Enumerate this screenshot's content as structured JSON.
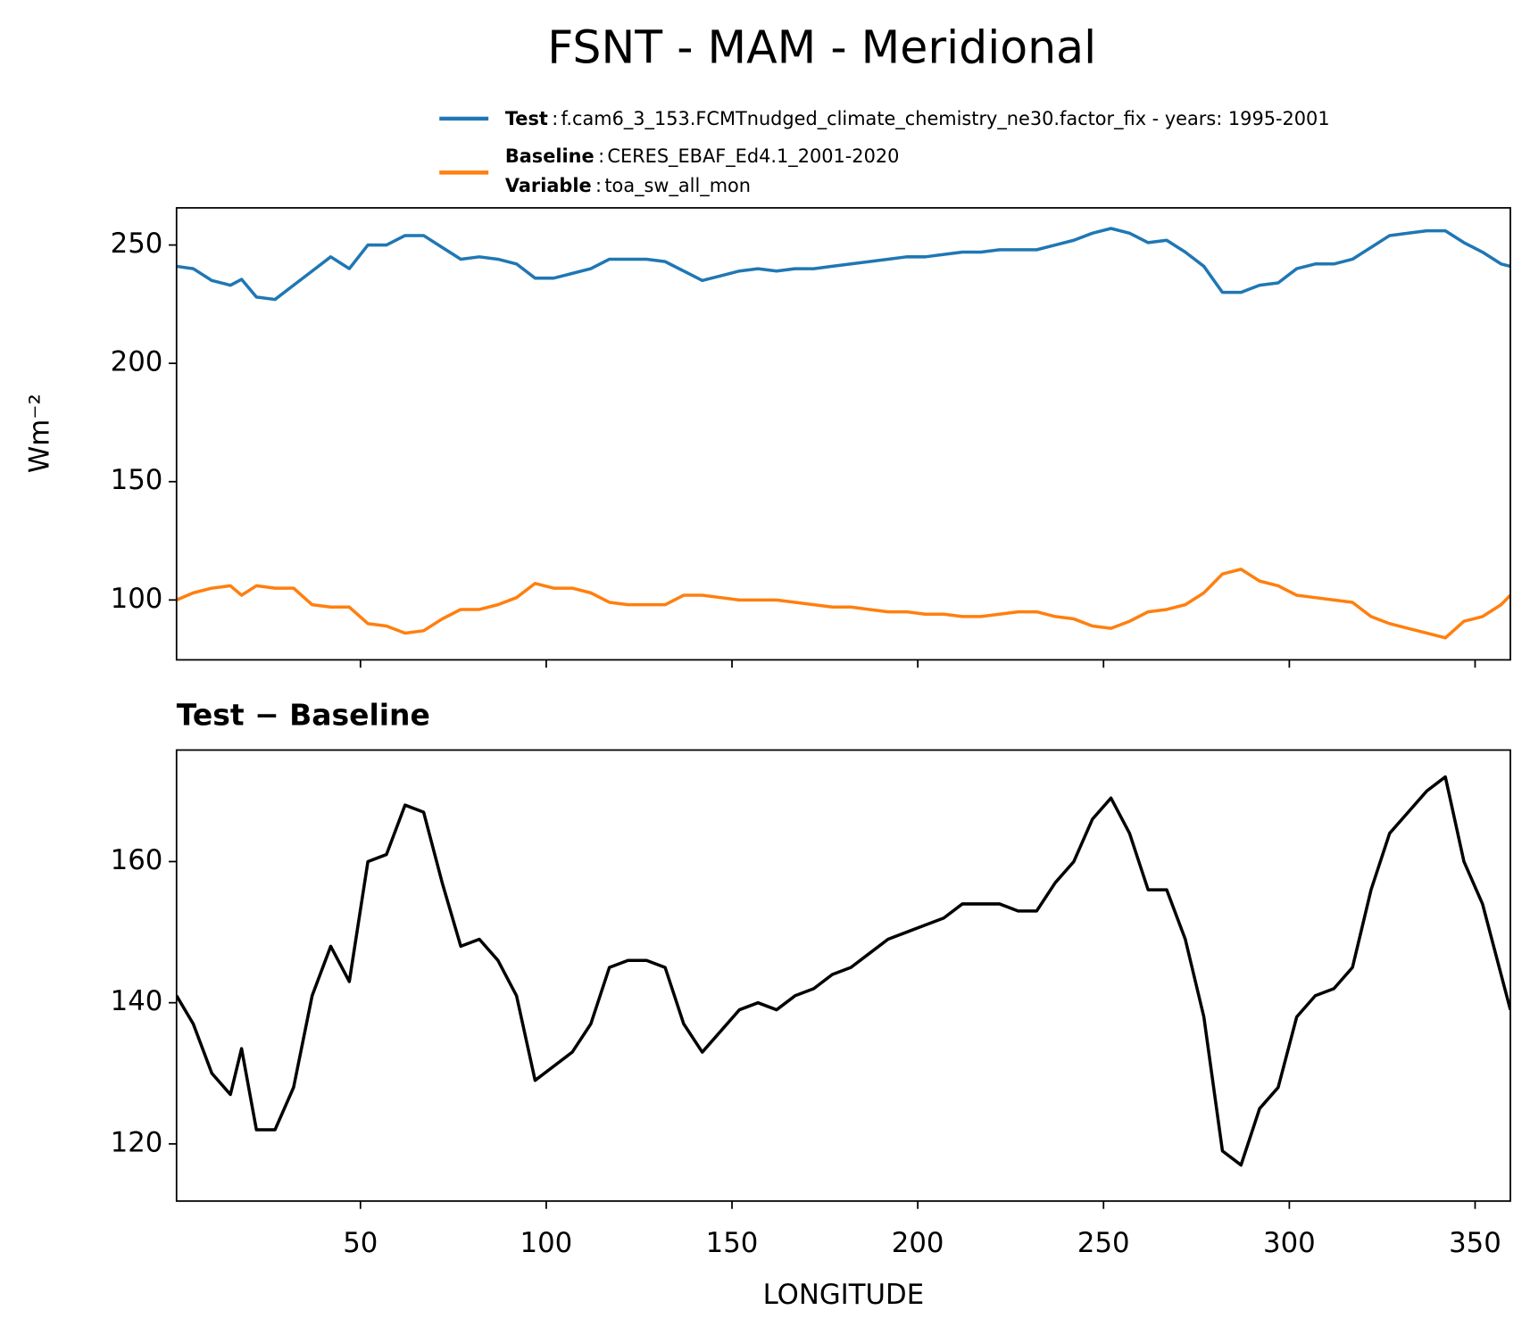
{
  "title": "FSNT - MAM - Meridional",
  "legend_separator": ":",
  "chart_data": [
    {
      "type": "line",
      "ylabel": "Wm⁻²",
      "x": [
        0.5,
        5,
        10,
        15,
        18,
        22,
        27,
        32,
        37,
        42,
        47,
        52,
        57,
        62,
        67,
        72,
        77,
        82,
        87,
        92,
        97,
        102,
        107,
        112,
        117,
        122,
        127,
        132,
        137,
        142,
        147,
        152,
        157,
        162,
        167,
        172,
        177,
        182,
        187,
        192,
        197,
        202,
        207,
        212,
        217,
        222,
        227,
        232,
        237,
        242,
        247,
        252,
        257,
        262,
        267,
        272,
        277,
        282,
        287,
        292,
        297,
        302,
        307,
        312,
        317,
        322,
        327,
        332,
        337,
        342,
        347,
        352,
        357,
        359.5
      ],
      "series": [
        {
          "name": "Test",
          "detail": "f.cam6_3_153.FCMTnudged_climate_chemistry_ne30.factor_fix - years: 1995-2001",
          "color": "#1f77b4",
          "values": [
            241,
            240,
            235,
            233,
            235.5,
            228,
            227,
            233,
            239,
            245,
            240,
            250,
            250,
            254,
            254,
            249,
            244,
            245,
            244,
            242,
            236,
            236,
            238,
            240,
            244,
            244,
            244,
            243,
            239,
            235,
            237,
            239,
            240,
            239,
            240,
            240,
            241,
            242,
            243,
            244,
            245,
            245,
            246,
            247,
            247,
            248,
            248,
            248,
            250,
            252,
            255,
            257,
            255,
            251,
            252,
            247,
            241,
            230,
            230,
            233,
            234,
            240,
            242,
            242,
            244,
            249,
            254,
            255,
            256,
            256,
            251,
            247,
            242,
            241
          ]
        },
        {
          "name": "Baseline",
          "detail": "CERES_EBAF_Ed4.1_2001-2020",
          "extra_name": "Variable",
          "extra_detail": "toa_sw_all_mon",
          "color": "#ff7f0e",
          "values": [
            100,
            103,
            105,
            106,
            102,
            106,
            105,
            105,
            98,
            97,
            97,
            90,
            89,
            86,
            87,
            92,
            96,
            96,
            98,
            101,
            107,
            105,
            105,
            103,
            99,
            98,
            98,
            98,
            102,
            102,
            101,
            100,
            100,
            100,
            99,
            98,
            97,
            97,
            96,
            95,
            95,
            94,
            94,
            93,
            93,
            94,
            95,
            95,
            93,
            92,
            89,
            88,
            91,
            95,
            96,
            98,
            103,
            111,
            113,
            108,
            106,
            102,
            101,
            100,
            99,
            93,
            90,
            88,
            86,
            84,
            91,
            93,
            98,
            102
          ]
        }
      ],
      "xlim": [
        0.5,
        359.5
      ],
      "xticks": [
        50,
        100,
        150,
        200,
        250,
        300,
        350
      ],
      "ylim": [
        74.7,
        265.7
      ],
      "yticks": [
        100,
        150,
        200,
        250
      ]
    },
    {
      "type": "line",
      "title": "Test − Baseline",
      "xlabel": "LONGITUDE",
      "x": [
        0.5,
        5,
        10,
        15,
        18,
        22,
        27,
        32,
        37,
        42,
        47,
        52,
        57,
        62,
        67,
        72,
        77,
        82,
        87,
        92,
        97,
        102,
        107,
        112,
        117,
        122,
        127,
        132,
        137,
        142,
        147,
        152,
        157,
        162,
        167,
        172,
        177,
        182,
        187,
        192,
        197,
        202,
        207,
        212,
        217,
        222,
        227,
        232,
        237,
        242,
        247,
        252,
        257,
        262,
        267,
        272,
        277,
        282,
        287,
        292,
        297,
        302,
        307,
        312,
        317,
        322,
        327,
        332,
        337,
        342,
        347,
        352,
        357,
        359.5
      ],
      "series": [
        {
          "color": "#000000",
          "values": [
            141,
            137,
            130,
            127,
            133.5,
            122,
            122,
            128,
            141,
            148,
            143,
            160,
            161,
            168,
            167,
            157,
            148,
            149,
            146,
            141,
            129,
            131,
            133,
            137,
            145,
            146,
            146,
            145,
            137,
            133,
            136,
            139,
            140,
            139,
            141,
            142,
            144,
            145,
            147,
            149,
            150,
            151,
            152,
            154,
            154,
            154,
            153,
            153,
            157,
            160,
            166,
            169,
            164,
            156,
            156,
            149,
            138,
            119,
            117,
            125,
            128,
            138,
            141,
            142,
            145,
            156,
            164,
            167,
            170,
            172,
            160,
            154,
            144,
            139
          ]
        }
      ],
      "xlim": [
        0.5,
        359.5
      ],
      "xticks": [
        50,
        100,
        150,
        200,
        250,
        300,
        350
      ],
      "ylim": [
        111.9,
        175.8
      ],
      "yticks": [
        120,
        140,
        160
      ]
    }
  ]
}
